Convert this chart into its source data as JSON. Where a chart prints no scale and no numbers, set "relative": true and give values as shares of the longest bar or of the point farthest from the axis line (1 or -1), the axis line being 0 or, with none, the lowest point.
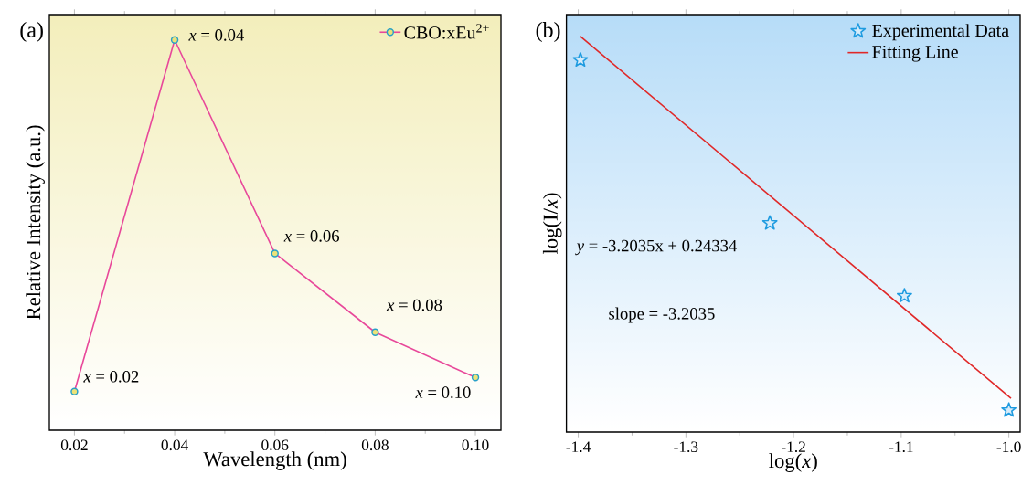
{
  "chart_data": [
    {
      "type": "line",
      "title": "(a)",
      "xlabel": "Wavelength (nm)",
      "ylabel": "Relative Intensity (a.u.)",
      "relative": true,
      "marker": "circle",
      "legend": "top right",
      "x": [
        0.02,
        0.04,
        0.06,
        0.08,
        0.1
      ],
      "series": [
        {
          "name": "CBO:xEu$^{2+}$",
          "color": "#e8489a",
          "values": [
            0.099,
            1,
            0.453,
            0.251,
            0.135
          ]
        }
      ],
      "xlim": [
        0.015,
        0.1051
      ],
      "xticks": [
        0.02,
        0.04,
        0.06,
        0.08,
        {
          "value": 0.1,
          "label": "0.10"
        }
      ],
      "annotations": [
        {
          "text": "*x* = 0.02",
          "x": 0.02,
          "y": 0.099
        },
        {
          "text": "*x* = 0.04",
          "x": 0.04,
          "y": 1
        },
        {
          "text": "*x* = 0.06",
          "x": 0.06,
          "y": 0.453
        },
        {
          "text": "*x* = 0.08",
          "x": 0.08,
          "y": 0.251
        },
        {
          "text": "*x* = 0.10",
          "x": 0.1,
          "y": 0.135
        }
      ]
    },
    {
      "type": "scatter",
      "title": "(b)",
      "xlabel": "log(*x*)",
      "ylabel": "log(I/*x*)",
      "relative": true,
      "legend": "top right",
      "series": [
        {
          "name": "Experimental Data",
          "type": "scatter",
          "marker": "star",
          "color": "#1e9be0",
          "x": [
            -1.398,
            -1.222,
            -1.097,
            -1.0
          ],
          "values": [
            0.94,
            0.528,
            0.344,
            0.055
          ]
        },
        {
          "name": "Fitting Line",
          "type": "line",
          "color": "#e02828",
          "x": [
            -1.398,
            -0.998
          ],
          "values": [
            1,
            0.085
          ]
        }
      ],
      "xlim": [
        -1.411,
        -0.9895
      ],
      "xticks": [
        -1.4,
        -1.3,
        -1.2,
        -1.1,
        {
          "value": -1.0,
          "label": "-1.0"
        }
      ],
      "annotations": [
        "*y* = -3.2035x + 0.24334",
        "slope = -3.2035"
      ]
    }
  ]
}
